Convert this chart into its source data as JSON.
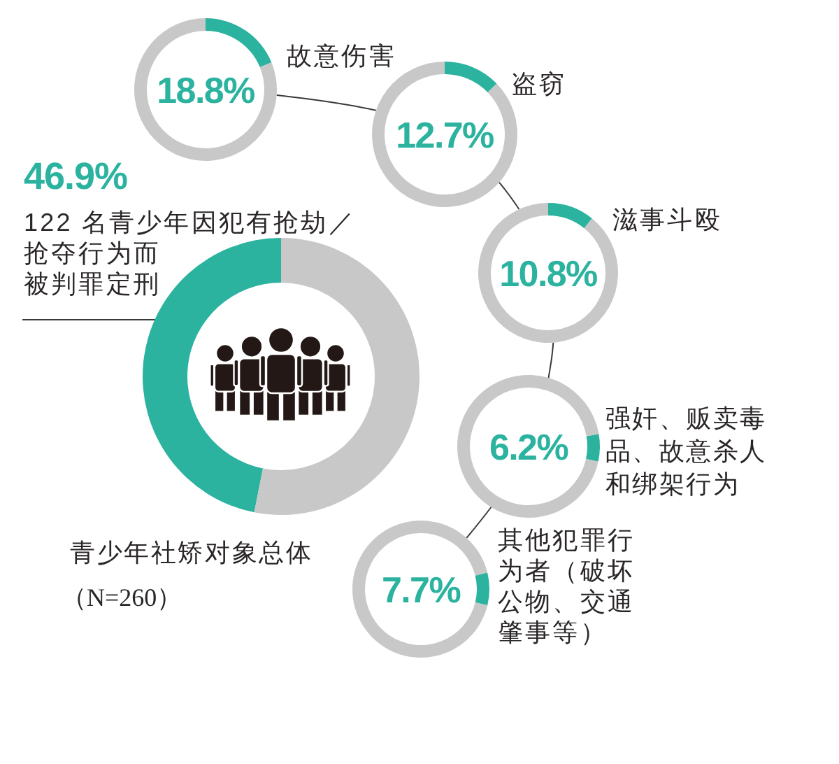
{
  "chart_data": [
    {
      "type": "donut",
      "title": "青少年社矫对象总体",
      "subtitle": "（N=260）",
      "categories": [
        "122 名青少年因犯有抢劫／抢夺行为而被判罪定刑",
        null
      ],
      "values": [
        46.9,
        53.1
      ],
      "colors": [
        "#2bb3a0",
        "#c8c8c8"
      ],
      "value_labels": [
        "46.9%",
        null
      ]
    },
    {
      "type": "donut",
      "categories": [
        "故意伤害",
        null
      ],
      "values": [
        18.8,
        81.2
      ],
      "colors": [
        "#2bb3a0",
        "#c8c8c8"
      ],
      "value_labels": [
        "18.8%",
        null
      ]
    },
    {
      "type": "donut",
      "categories": [
        "盗窃",
        null
      ],
      "values": [
        12.7,
        87.3
      ],
      "colors": [
        "#2bb3a0",
        "#c8c8c8"
      ],
      "value_labels": [
        "12.7%",
        null
      ]
    },
    {
      "type": "donut",
      "categories": [
        "滋事斗殴",
        null
      ],
      "values": [
        10.8,
        89.2
      ],
      "colors": [
        "#2bb3a0",
        "#c8c8c8"
      ],
      "value_labels": [
        "10.8%",
        null
      ]
    },
    {
      "type": "donut",
      "categories": [
        "强奸、贩卖毒品、故意杀人和绑架行为",
        null
      ],
      "values": [
        6.2,
        93.8
      ],
      "colors": [
        "#2bb3a0",
        "#c8c8c8"
      ],
      "value_labels": [
        "6.2%",
        null
      ]
    },
    {
      "type": "donut",
      "categories": [
        "其他犯罪行为者（破坏公物、交通肇事等）",
        null
      ],
      "values": [
        7.7,
        92.3
      ],
      "colors": [
        "#2bb3a0",
        "#c8c8c8"
      ],
      "value_labels": [
        "7.7%",
        null
      ]
    }
  ]
}
